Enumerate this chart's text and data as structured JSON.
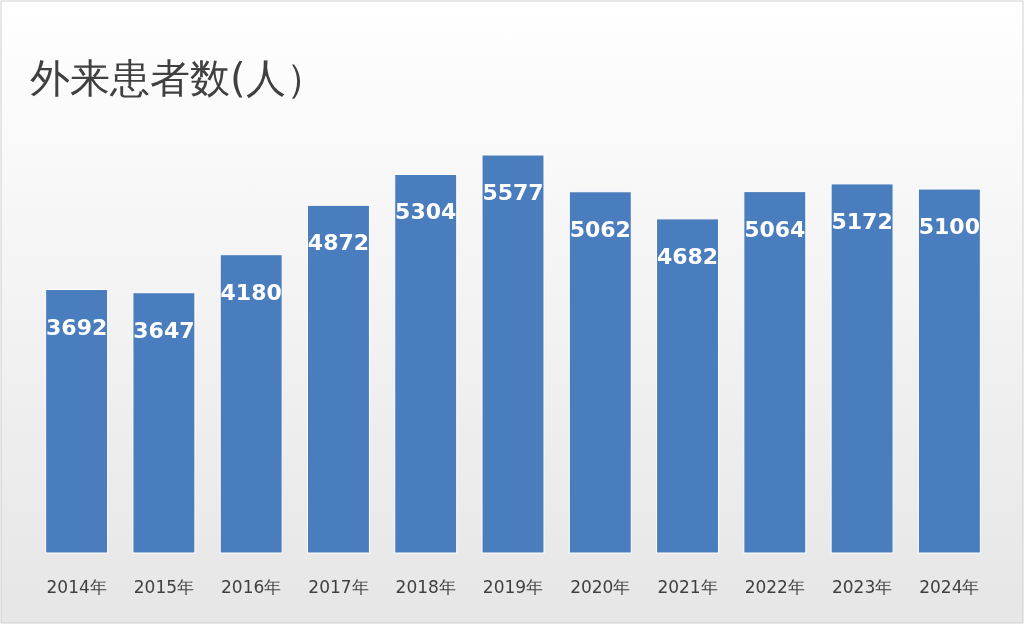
{
  "chart_data": {
    "type": "bar",
    "title": "外来患者数(人）",
    "categories": [
      "2014年",
      "2015年",
      "2016年",
      "2017年",
      "2018年",
      "2019年",
      "2020年",
      "2021年",
      "2022年",
      "2023年",
      "2024年"
    ],
    "values": [
      3692,
      3647,
      4180,
      4872,
      5304,
      5577,
      5062,
      4682,
      5064,
      5172,
      5100
    ],
    "color": "#4a7dbd",
    "data_labels": true
  }
}
